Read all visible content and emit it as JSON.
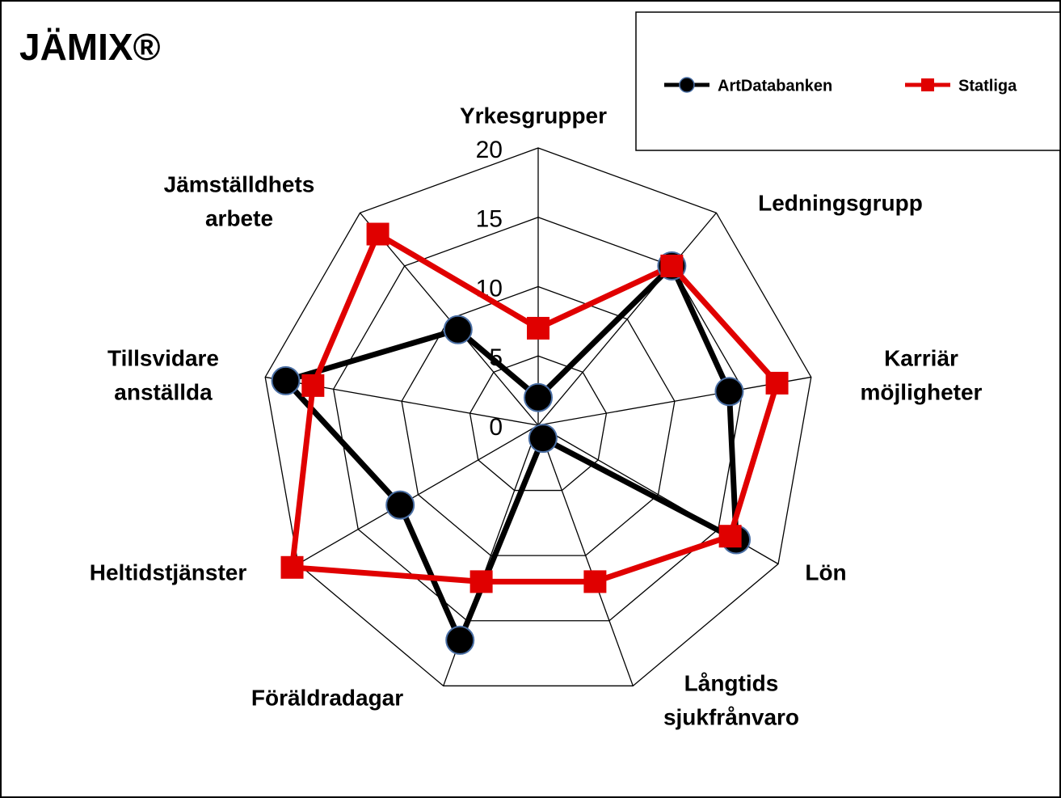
{
  "chart_data": {
    "type": "radar",
    "title": "JÄMIX®",
    "categories": [
      [
        "Yrkesgrupper"
      ],
      [
        "Ledningsgrupp"
      ],
      [
        "Karriär",
        "möjligheter"
      ],
      [
        "Lön"
      ],
      [
        "Långtids",
        "sjukfrånvaro"
      ],
      [
        "Föräldradagar"
      ],
      [
        "Heltidstjänster"
      ],
      [
        "Tillsvidare",
        "anställda"
      ],
      [
        "Jämställdhets",
        "arbete"
      ]
    ],
    "series": [
      {
        "name": "ArtDatabanken",
        "color": "#000000",
        "values": [
          2,
          15,
          14,
          16.5,
          1,
          16.5,
          11.5,
          18.5,
          9
        ]
      },
      {
        "name": "Statliga",
        "color": "#e00000",
        "values": [
          7,
          15,
          17.5,
          16,
          12,
          12,
          20.5,
          16.5,
          18
        ]
      }
    ],
    "ylim": [
      0,
      20
    ],
    "yticks": [
      0,
      5,
      10,
      15,
      20
    ],
    "grid": true,
    "legend": "top-right"
  }
}
